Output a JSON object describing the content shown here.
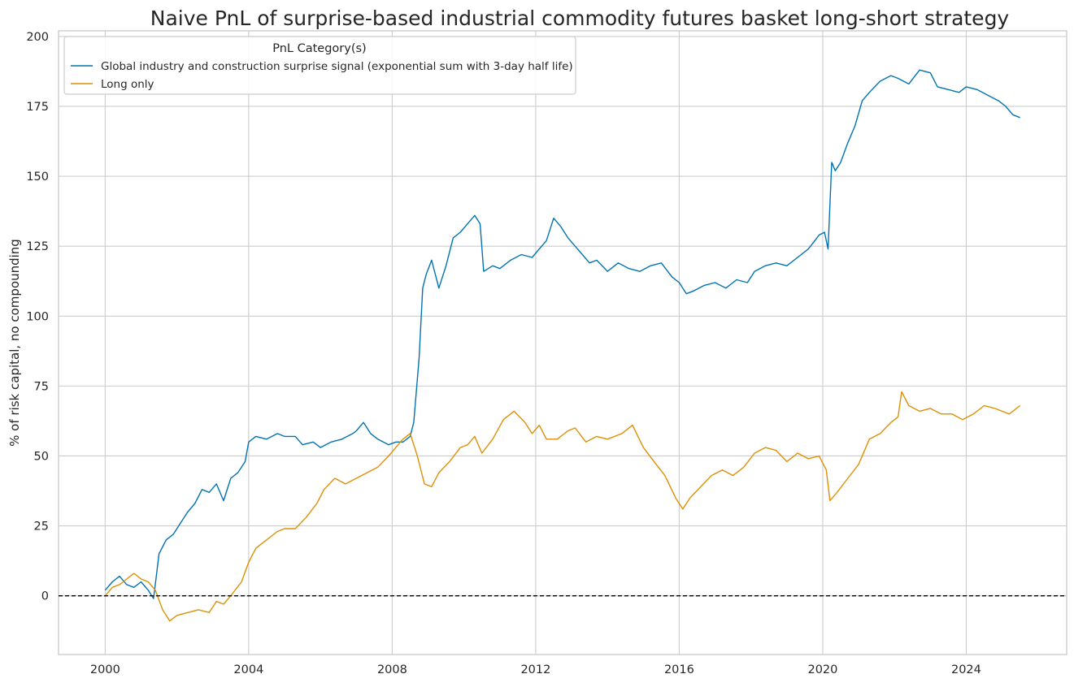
{
  "chart_data": {
    "type": "line",
    "title": "Naive PnL of surprise-based industrial commodity futures basket long-short strategy",
    "xlabel": "",
    "ylabel": "% of risk capital, no compounding",
    "xlim": [
      1998.7,
      2026.8
    ],
    "ylim": [
      -21,
      202
    ],
    "x_ticks": [
      2000,
      2004,
      2008,
      2012,
      2016,
      2020,
      2024
    ],
    "x_tick_labels": [
      "2000",
      "2004",
      "2008",
      "2012",
      "2016",
      "2020",
      "2024"
    ],
    "y_ticks": [
      0,
      25,
      50,
      75,
      100,
      125,
      150,
      175,
      200
    ],
    "y_tick_labels": [
      "0",
      "25",
      "50",
      "75",
      "100",
      "125",
      "150",
      "175",
      "200"
    ],
    "grid": true,
    "zero_line": {
      "y": 0,
      "style": "dashed",
      "color": "#000000"
    },
    "legend": {
      "title": "PnL Category(s)",
      "placement": "top-left"
    },
    "series": [
      {
        "name": "Global industry and construction surprise signal (exponential sum with 3-day half life)",
        "color": "#0173b2",
        "points": [
          [
            2000.0,
            2
          ],
          [
            2000.2,
            5
          ],
          [
            2000.4,
            7
          ],
          [
            2000.6,
            4
          ],
          [
            2000.8,
            3
          ],
          [
            2001.0,
            5
          ],
          [
            2001.2,
            2
          ],
          [
            2001.35,
            -1
          ],
          [
            2001.5,
            15
          ],
          [
            2001.7,
            20
          ],
          [
            2001.9,
            22
          ],
          [
            2002.1,
            26
          ],
          [
            2002.3,
            30
          ],
          [
            2002.5,
            33
          ],
          [
            2002.7,
            38
          ],
          [
            2002.9,
            37
          ],
          [
            2003.1,
            40
          ],
          [
            2003.3,
            34
          ],
          [
            2003.5,
            42
          ],
          [
            2003.7,
            44
          ],
          [
            2003.9,
            48
          ],
          [
            2004.0,
            55
          ],
          [
            2004.2,
            57
          ],
          [
            2004.5,
            56
          ],
          [
            2004.8,
            58
          ],
          [
            2005.0,
            57
          ],
          [
            2005.3,
            57
          ],
          [
            2005.5,
            54
          ],
          [
            2005.8,
            55
          ],
          [
            2006.0,
            53
          ],
          [
            2006.3,
            55
          ],
          [
            2006.6,
            56
          ],
          [
            2006.9,
            58
          ],
          [
            2007.0,
            59
          ],
          [
            2007.2,
            62
          ],
          [
            2007.4,
            58
          ],
          [
            2007.6,
            56
          ],
          [
            2007.9,
            54
          ],
          [
            2008.1,
            55
          ],
          [
            2008.3,
            55
          ],
          [
            2008.5,
            57
          ],
          [
            2008.6,
            62
          ],
          [
            2008.75,
            85
          ],
          [
            2008.85,
            110
          ],
          [
            2008.95,
            115
          ],
          [
            2009.1,
            120
          ],
          [
            2009.3,
            110
          ],
          [
            2009.5,
            118
          ],
          [
            2009.7,
            128
          ],
          [
            2009.9,
            130
          ],
          [
            2010.1,
            133
          ],
          [
            2010.3,
            136
          ],
          [
            2010.45,
            133
          ],
          [
            2010.55,
            116
          ],
          [
            2010.8,
            118
          ],
          [
            2011.0,
            117
          ],
          [
            2011.3,
            120
          ],
          [
            2011.6,
            122
          ],
          [
            2011.9,
            121
          ],
          [
            2012.1,
            124
          ],
          [
            2012.3,
            127
          ],
          [
            2012.5,
            135
          ],
          [
            2012.7,
            132
          ],
          [
            2012.9,
            128
          ],
          [
            2013.1,
            125
          ],
          [
            2013.3,
            122
          ],
          [
            2013.5,
            119
          ],
          [
            2013.7,
            120
          ],
          [
            2014.0,
            116
          ],
          [
            2014.3,
            119
          ],
          [
            2014.6,
            117
          ],
          [
            2014.9,
            116
          ],
          [
            2015.2,
            118
          ],
          [
            2015.5,
            119
          ],
          [
            2015.8,
            114
          ],
          [
            2016.0,
            112
          ],
          [
            2016.2,
            108
          ],
          [
            2016.4,
            109
          ],
          [
            2016.7,
            111
          ],
          [
            2017.0,
            112
          ],
          [
            2017.3,
            110
          ],
          [
            2017.6,
            113
          ],
          [
            2017.9,
            112
          ],
          [
            2018.1,
            116
          ],
          [
            2018.4,
            118
          ],
          [
            2018.7,
            119
          ],
          [
            2019.0,
            118
          ],
          [
            2019.3,
            121
          ],
          [
            2019.6,
            124
          ],
          [
            2019.9,
            129
          ],
          [
            2020.05,
            130
          ],
          [
            2020.15,
            124
          ],
          [
            2020.25,
            155
          ],
          [
            2020.35,
            152
          ],
          [
            2020.5,
            155
          ],
          [
            2020.7,
            162
          ],
          [
            2020.9,
            168
          ],
          [
            2021.1,
            177
          ],
          [
            2021.3,
            180
          ],
          [
            2021.6,
            184
          ],
          [
            2021.9,
            186
          ],
          [
            2022.1,
            185
          ],
          [
            2022.4,
            183
          ],
          [
            2022.7,
            188
          ],
          [
            2023.0,
            187
          ],
          [
            2023.2,
            182
          ],
          [
            2023.5,
            181
          ],
          [
            2023.8,
            180
          ],
          [
            2024.0,
            182
          ],
          [
            2024.3,
            181
          ],
          [
            2024.6,
            179
          ],
          [
            2024.9,
            177
          ],
          [
            2025.1,
            175
          ],
          [
            2025.3,
            172
          ],
          [
            2025.5,
            171
          ]
        ]
      },
      {
        "name": "Long only",
        "color": "#de8f05",
        "points": [
          [
            2000.0,
            0
          ],
          [
            2000.2,
            3
          ],
          [
            2000.4,
            4
          ],
          [
            2000.6,
            6
          ],
          [
            2000.8,
            8
          ],
          [
            2001.0,
            6
          ],
          [
            2001.2,
            5
          ],
          [
            2001.4,
            2
          ],
          [
            2001.6,
            -5
          ],
          [
            2001.8,
            -9
          ],
          [
            2002.0,
            -7
          ],
          [
            2002.3,
            -6
          ],
          [
            2002.6,
            -5
          ],
          [
            2002.9,
            -6
          ],
          [
            2003.1,
            -2
          ],
          [
            2003.3,
            -3
          ],
          [
            2003.5,
            0
          ],
          [
            2003.8,
            5
          ],
          [
            2004.0,
            12
          ],
          [
            2004.2,
            17
          ],
          [
            2004.5,
            20
          ],
          [
            2004.8,
            23
          ],
          [
            2005.0,
            24
          ],
          [
            2005.3,
            24
          ],
          [
            2005.6,
            28
          ],
          [
            2005.9,
            33
          ],
          [
            2006.1,
            38
          ],
          [
            2006.4,
            42
          ],
          [
            2006.7,
            40
          ],
          [
            2007.0,
            42
          ],
          [
            2007.3,
            44
          ],
          [
            2007.6,
            46
          ],
          [
            2007.9,
            50
          ],
          [
            2008.1,
            53
          ],
          [
            2008.3,
            56
          ],
          [
            2008.5,
            58
          ],
          [
            2008.7,
            50
          ],
          [
            2008.9,
            40
          ],
          [
            2009.1,
            39
          ],
          [
            2009.3,
            44
          ],
          [
            2009.6,
            48
          ],
          [
            2009.9,
            53
          ],
          [
            2010.1,
            54
          ],
          [
            2010.3,
            57
          ],
          [
            2010.5,
            51
          ],
          [
            2010.8,
            56
          ],
          [
            2011.1,
            63
          ],
          [
            2011.4,
            66
          ],
          [
            2011.7,
            62
          ],
          [
            2011.9,
            58
          ],
          [
            2012.1,
            61
          ],
          [
            2012.3,
            56
          ],
          [
            2012.6,
            56
          ],
          [
            2012.9,
            59
          ],
          [
            2013.1,
            60
          ],
          [
            2013.4,
            55
          ],
          [
            2013.7,
            57
          ],
          [
            2014.0,
            56
          ],
          [
            2014.4,
            58
          ],
          [
            2014.7,
            61
          ],
          [
            2015.0,
            53
          ],
          [
            2015.3,
            48
          ],
          [
            2015.6,
            43
          ],
          [
            2015.9,
            35
          ],
          [
            2016.1,
            31
          ],
          [
            2016.3,
            35
          ],
          [
            2016.6,
            39
          ],
          [
            2016.9,
            43
          ],
          [
            2017.2,
            45
          ],
          [
            2017.5,
            43
          ],
          [
            2017.8,
            46
          ],
          [
            2018.1,
            51
          ],
          [
            2018.4,
            53
          ],
          [
            2018.7,
            52
          ],
          [
            2019.0,
            48
          ],
          [
            2019.3,
            51
          ],
          [
            2019.6,
            49
          ],
          [
            2019.9,
            50
          ],
          [
            2020.1,
            45
          ],
          [
            2020.2,
            34
          ],
          [
            2020.4,
            37
          ],
          [
            2020.7,
            42
          ],
          [
            2021.0,
            47
          ],
          [
            2021.3,
            56
          ],
          [
            2021.6,
            58
          ],
          [
            2021.9,
            62
          ],
          [
            2022.1,
            64
          ],
          [
            2022.2,
            73
          ],
          [
            2022.4,
            68
          ],
          [
            2022.7,
            66
          ],
          [
            2023.0,
            67
          ],
          [
            2023.3,
            65
          ],
          [
            2023.6,
            65
          ],
          [
            2023.9,
            63
          ],
          [
            2024.2,
            65
          ],
          [
            2024.5,
            68
          ],
          [
            2024.8,
            67
          ],
          [
            2025.0,
            66
          ],
          [
            2025.2,
            65
          ],
          [
            2025.5,
            68
          ]
        ]
      }
    ]
  }
}
